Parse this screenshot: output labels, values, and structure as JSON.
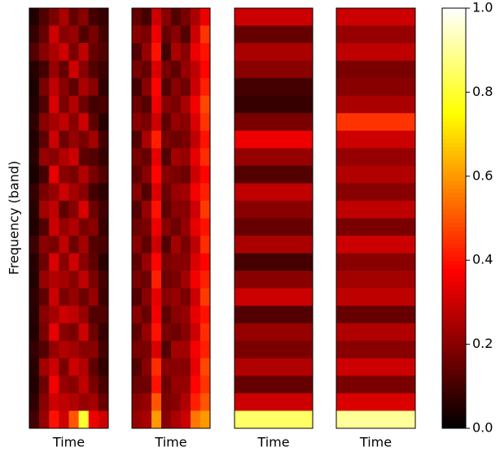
{
  "chart_data": {
    "type": "heatmap",
    "colormap": "hot",
    "ylabel": "Frequency (band)",
    "zlim": [
      0,
      1
    ],
    "zticks": [
      {
        "value": 0,
        "label": "0.0"
      },
      {
        "value": 0.2,
        "label": "0.2"
      },
      {
        "value": 0.4,
        "label": "0.4"
      },
      {
        "value": 0.6,
        "label": "0.6"
      },
      {
        "value": 0.8,
        "label": "0.8"
      },
      {
        "value": 1,
        "label": "1.0"
      }
    ],
    "panels": [
      {
        "xlabel": "Time",
        "z": [
          [
            0.05,
            0.12,
            0.18,
            0.25,
            0.15,
            0.2,
            0.1,
            0.08
          ],
          [
            0.08,
            0.15,
            0.3,
            0.2,
            0.22,
            0.12,
            0.18,
            0.1
          ],
          [
            0.12,
            0.2,
            0.25,
            0.3,
            0.18,
            0.28,
            0.15,
            0.12
          ],
          [
            0.06,
            0.1,
            0.22,
            0.15,
            0.3,
            0.2,
            0.12,
            0.09
          ],
          [
            0.04,
            0.18,
            0.28,
            0.2,
            0.14,
            0.25,
            0.2,
            0.07
          ],
          [
            0.05,
            0.12,
            0.32,
            0.18,
            0.26,
            0.16,
            0.1,
            0.11
          ],
          [
            0.07,
            0.2,
            0.24,
            0.28,
            0.2,
            0.3,
            0.14,
            0.06
          ],
          [
            0.05,
            0.14,
            0.3,
            0.16,
            0.22,
            0.18,
            0.24,
            0.1
          ],
          [
            0.06,
            0.22,
            0.2,
            0.26,
            0.3,
            0.14,
            0.12,
            0.08
          ],
          [
            0.04,
            0.1,
            0.34,
            0.2,
            0.18,
            0.26,
            0.18,
            0.12
          ],
          [
            0.08,
            0.18,
            0.22,
            0.3,
            0.24,
            0.2,
            0.1,
            0.07
          ],
          [
            0.06,
            0.24,
            0.28,
            0.14,
            0.2,
            0.32,
            0.16,
            0.1
          ],
          [
            0.05,
            0.12,
            0.3,
            0.22,
            0.26,
            0.18,
            0.2,
            0.08
          ],
          [
            0.09,
            0.2,
            0.18,
            0.28,
            0.16,
            0.24,
            0.12,
            0.11
          ],
          [
            0.06,
            0.16,
            0.32,
            0.2,
            0.3,
            0.2,
            0.14,
            0.06
          ],
          [
            0.05,
            0.22,
            0.26,
            0.24,
            0.2,
            0.28,
            0.18,
            0.1
          ],
          [
            0.07,
            0.14,
            0.3,
            0.18,
            0.22,
            0.16,
            0.22,
            0.09
          ],
          [
            0.06,
            0.2,
            0.24,
            0.3,
            0.28,
            0.22,
            0.12,
            0.12
          ],
          [
            0.05,
            0.18,
            0.34,
            0.2,
            0.18,
            0.3,
            0.16,
            0.08
          ],
          [
            0.08,
            0.12,
            0.22,
            0.26,
            0.24,
            0.2,
            0.2,
            0.1
          ],
          [
            0.06,
            0.24,
            0.3,
            0.18,
            0.3,
            0.26,
            0.14,
            0.07
          ],
          [
            0.05,
            0.16,
            0.36,
            0.22,
            0.2,
            0.28,
            0.18,
            0.11
          ],
          [
            0.07,
            0.2,
            0.3,
            0.28,
            0.26,
            0.22,
            0.24,
            0.15
          ],
          [
            0.1,
            0.22,
            0.4,
            0.3,
            0.5,
            0.8,
            0.35,
            0.3
          ]
        ]
      },
      {
        "xlabel": "Time",
        "z": [
          [
            0.15,
            0.1,
            0.3,
            0.2,
            0.12,
            0.18,
            0.25,
            0.35
          ],
          [
            0.2,
            0.18,
            0.35,
            0.15,
            0.2,
            0.12,
            0.3,
            0.45
          ],
          [
            0.12,
            0.22,
            0.4,
            0.1,
            0.25,
            0.2,
            0.35,
            0.4
          ],
          [
            0.18,
            0.15,
            0.32,
            0.18,
            0.14,
            0.22,
            0.28,
            0.38
          ],
          [
            0.1,
            0.2,
            0.38,
            0.12,
            0.2,
            0.16,
            0.3,
            0.42
          ],
          [
            0.16,
            0.12,
            0.35,
            0.2,
            0.18,
            0.25,
            0.36,
            0.48
          ],
          [
            0.2,
            0.18,
            0.3,
            0.14,
            0.22,
            0.2,
            0.32,
            0.45
          ],
          [
            0.12,
            0.25,
            0.42,
            0.18,
            0.16,
            0.18,
            0.28,
            0.4
          ],
          [
            0.18,
            0.15,
            0.34,
            0.12,
            0.24,
            0.22,
            0.34,
            0.44
          ],
          [
            0.14,
            0.2,
            0.38,
            0.2,
            0.18,
            0.16,
            0.3,
            0.38
          ],
          [
            0.2,
            0.12,
            0.32,
            0.16,
            0.22,
            0.24,
            0.36,
            0.42
          ],
          [
            0.12,
            0.22,
            0.4,
            0.14,
            0.2,
            0.2,
            0.3,
            0.46
          ],
          [
            0.16,
            0.18,
            0.35,
            0.2,
            0.16,
            0.22,
            0.34,
            0.4
          ],
          [
            0.2,
            0.14,
            0.3,
            0.12,
            0.24,
            0.18,
            0.28,
            0.44
          ],
          [
            0.14,
            0.22,
            0.38,
            0.18,
            0.2,
            0.2,
            0.32,
            0.38
          ],
          [
            0.18,
            0.16,
            0.42,
            0.16,
            0.18,
            0.24,
            0.36,
            0.42
          ],
          [
            0.12,
            0.2,
            0.34,
            0.2,
            0.22,
            0.18,
            0.3,
            0.46
          ],
          [
            0.2,
            0.15,
            0.36,
            0.14,
            0.2,
            0.22,
            0.34,
            0.4
          ],
          [
            0.14,
            0.22,
            0.4,
            0.18,
            0.16,
            0.2,
            0.3,
            0.44
          ],
          [
            0.18,
            0.18,
            0.32,
            0.12,
            0.24,
            0.24,
            0.36,
            0.42
          ],
          [
            0.12,
            0.2,
            0.44,
            0.2,
            0.2,
            0.2,
            0.34,
            0.48
          ],
          [
            0.16,
            0.16,
            0.4,
            0.16,
            0.22,
            0.22,
            0.38,
            0.45
          ],
          [
            0.2,
            0.22,
            0.5,
            0.18,
            0.2,
            0.26,
            0.42,
            0.5
          ],
          [
            0.22,
            0.25,
            0.6,
            0.2,
            0.25,
            0.3,
            0.55,
            0.6
          ]
        ]
      },
      {
        "xlabel": "Time",
        "z": [
          [
            0.3
          ],
          [
            0.15
          ],
          [
            0.25
          ],
          [
            0.2
          ],
          [
            0.1
          ],
          [
            0.08
          ],
          [
            0.18
          ],
          [
            0.35
          ],
          [
            0.22
          ],
          [
            0.12
          ],
          [
            0.28
          ],
          [
            0.2
          ],
          [
            0.15
          ],
          [
            0.25
          ],
          [
            0.1
          ],
          [
            0.2
          ],
          [
            0.3
          ],
          [
            0.12
          ],
          [
            0.22
          ],
          [
            0.18
          ],
          [
            0.26
          ],
          [
            0.15
          ],
          [
            0.3
          ],
          [
            0.85
          ]
        ]
      },
      {
        "xlabel": "Time",
        "z": [
          [
            0.3
          ],
          [
            0.22
          ],
          [
            0.28
          ],
          [
            0.18
          ],
          [
            0.2
          ],
          [
            0.25
          ],
          [
            0.45
          ],
          [
            0.3
          ],
          [
            0.22
          ],
          [
            0.26
          ],
          [
            0.2
          ],
          [
            0.28
          ],
          [
            0.18
          ],
          [
            0.3
          ],
          [
            0.2
          ],
          [
            0.24
          ],
          [
            0.28
          ],
          [
            0.15
          ],
          [
            0.26
          ],
          [
            0.2
          ],
          [
            0.3
          ],
          [
            0.18
          ],
          [
            0.32
          ],
          [
            0.9
          ]
        ]
      }
    ]
  }
}
